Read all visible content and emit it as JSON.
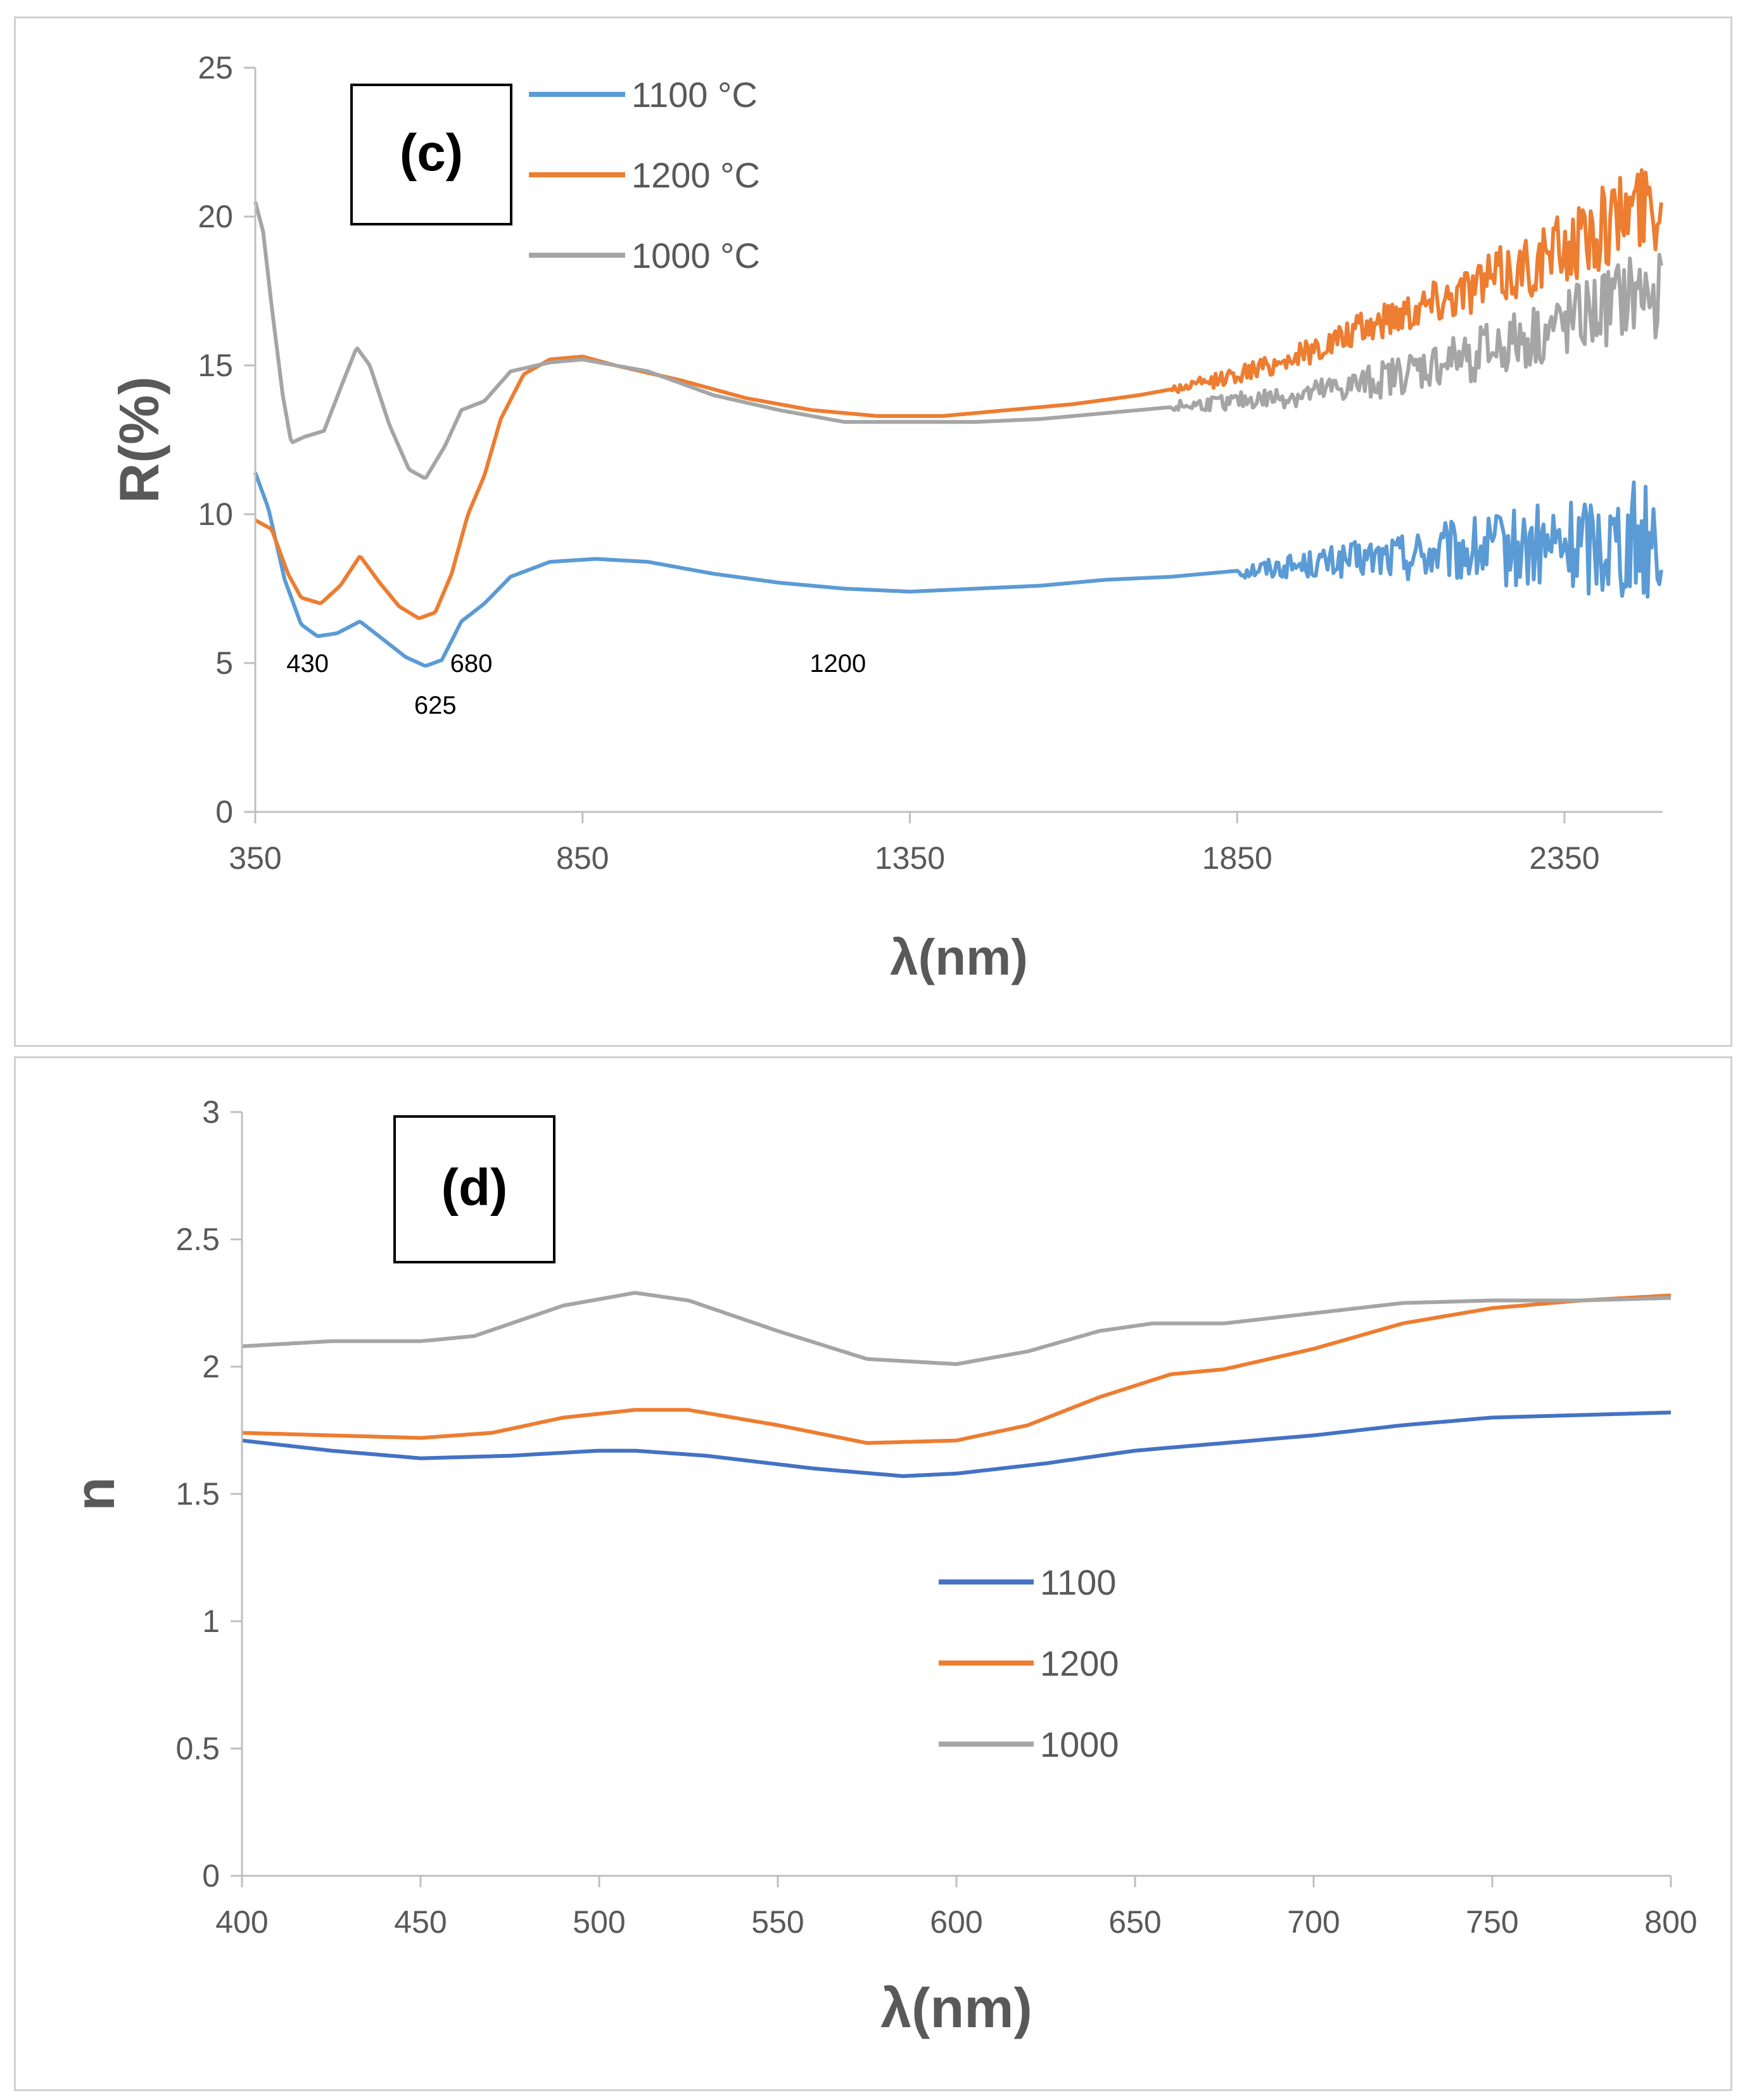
{
  "colors": {
    "s1100": "#5b9bd5",
    "s1200": "#ed7d31",
    "s1000": "#a5a5a5",
    "d1100": "#4472c4",
    "axis": "#bfbfbf",
    "text": "#595959"
  },
  "chart_data": [
    {
      "type": "line",
      "panel_label": "(c)",
      "xlabel": "λ(nm)",
      "ylabel": "R(%)",
      "xlim": [
        350,
        2500
      ],
      "ylim": [
        0,
        25
      ],
      "x_ticks": [
        "350",
        "850",
        "1350",
        "1850",
        "2350"
      ],
      "x_tick_values": [
        350,
        850,
        1350,
        1850,
        2350
      ],
      "y_ticks": [
        "0",
        "5",
        "10",
        "15",
        "20",
        "25"
      ],
      "y_tick_values": [
        0,
        5,
        10,
        15,
        20,
        25
      ],
      "legend": [
        "1100 °C",
        "1200 °C",
        "1000 °C"
      ],
      "annotations": [
        {
          "text": "430",
          "x": 430,
          "y": 4.7
        },
        {
          "text": "625",
          "x": 625,
          "y": 3.3
        },
        {
          "text": "680",
          "x": 680,
          "y": 4.7
        },
        {
          "text": "1200",
          "x": 1240,
          "y": 4.7
        }
      ],
      "series": [
        {
          "name": "1100 °C",
          "noise_from": 1850,
          "noise_amp_start": 0.3,
          "noise_amp_end": 2.2,
          "points": [
            [
              350,
              11.4
            ],
            [
              370,
              10.2
            ],
            [
              395,
              7.8
            ],
            [
              420,
              6.3
            ],
            [
              445,
              5.9
            ],
            [
              475,
              6.0
            ],
            [
              510,
              6.4
            ],
            [
              545,
              5.8
            ],
            [
              580,
              5.2
            ],
            [
              610,
              4.9
            ],
            [
              635,
              5.1
            ],
            [
              665,
              6.4
            ],
            [
              700,
              7.0
            ],
            [
              740,
              7.9
            ],
            [
              800,
              8.4
            ],
            [
              870,
              8.5
            ],
            [
              950,
              8.4
            ],
            [
              1050,
              8.0
            ],
            [
              1150,
              7.7
            ],
            [
              1250,
              7.5
            ],
            [
              1350,
              7.4
            ],
            [
              1450,
              7.5
            ],
            [
              1550,
              7.6
            ],
            [
              1650,
              7.8
            ],
            [
              1750,
              7.9
            ],
            [
              1850,
              8.1
            ],
            [
              1950,
              8.3
            ],
            [
              2050,
              8.5
            ],
            [
              2150,
              8.7
            ],
            [
              2250,
              8.8
            ],
            [
              2350,
              8.9
            ],
            [
              2450,
              9.2
            ],
            [
              2500,
              9.3
            ]
          ]
        },
        {
          "name": "1200 °C",
          "noise_from": 1750,
          "noise_amp_start": 0.2,
          "noise_amp_end": 1.6,
          "points": [
            [
              350,
              9.8
            ],
            [
              375,
              9.5
            ],
            [
              400,
              8.0
            ],
            [
              420,
              7.2
            ],
            [
              450,
              7.0
            ],
            [
              480,
              7.6
            ],
            [
              510,
              8.6
            ],
            [
              540,
              7.7
            ],
            [
              570,
              6.9
            ],
            [
              600,
              6.5
            ],
            [
              625,
              6.7
            ],
            [
              650,
              8.0
            ],
            [
              675,
              10.0
            ],
            [
              700,
              11.3
            ],
            [
              725,
              13.2
            ],
            [
              760,
              14.7
            ],
            [
              800,
              15.2
            ],
            [
              850,
              15.3
            ],
            [
              900,
              15.0
            ],
            [
              1000,
              14.5
            ],
            [
              1100,
              13.9
            ],
            [
              1200,
              13.5
            ],
            [
              1300,
              13.3
            ],
            [
              1400,
              13.3
            ],
            [
              1500,
              13.5
            ],
            [
              1600,
              13.7
            ],
            [
              1700,
              14.0
            ],
            [
              1800,
              14.4
            ],
            [
              1900,
              15.0
            ],
            [
              2000,
              15.8
            ],
            [
              2100,
              16.8
            ],
            [
              2200,
              17.6
            ],
            [
              2300,
              18.4
            ],
            [
              2400,
              19.5
            ],
            [
              2450,
              20.3
            ],
            [
              2500,
              20.5
            ]
          ]
        },
        {
          "name": "1000 °C",
          "noise_from": 1750,
          "noise_amp_start": 0.2,
          "noise_amp_end": 1.6,
          "points": [
            [
              350,
              20.5
            ],
            [
              362,
              19.5
            ],
            [
              375,
              17.0
            ],
            [
              392,
              14.0
            ],
            [
              405,
              12.4
            ],
            [
              425,
              12.6
            ],
            [
              455,
              12.8
            ],
            [
              485,
              14.5
            ],
            [
              505,
              15.6
            ],
            [
              525,
              15.0
            ],
            [
              555,
              13.0
            ],
            [
              585,
              11.5
            ],
            [
              610,
              11.2
            ],
            [
              640,
              12.3
            ],
            [
              665,
              13.5
            ],
            [
              700,
              13.8
            ],
            [
              740,
              14.8
            ],
            [
              800,
              15.1
            ],
            [
              850,
              15.2
            ],
            [
              950,
              14.8
            ],
            [
              1050,
              14.0
            ],
            [
              1150,
              13.5
            ],
            [
              1250,
              13.1
            ],
            [
              1350,
              13.1
            ],
            [
              1450,
              13.1
            ],
            [
              1550,
              13.2
            ],
            [
              1650,
              13.4
            ],
            [
              1750,
              13.6
            ],
            [
              1850,
              13.8
            ],
            [
              1950,
              14.0
            ],
            [
              2050,
              14.4
            ],
            [
              2150,
              15.0
            ],
            [
              2250,
              15.6
            ],
            [
              2350,
              16.3
            ],
            [
              2450,
              17.3
            ],
            [
              2500,
              17.5
            ]
          ]
        }
      ]
    },
    {
      "type": "line",
      "panel_label": "(d)",
      "xlabel": "λ(nm)",
      "ylabel": "n",
      "xlim": [
        400,
        800
      ],
      "ylim": [
        0,
        3
      ],
      "x_ticks": [
        "400",
        "450",
        "500",
        "550",
        "600",
        "650",
        "700",
        "750",
        "800"
      ],
      "x_tick_values": [
        400,
        450,
        500,
        550,
        600,
        650,
        700,
        750,
        800
      ],
      "y_ticks": [
        "0",
        "0.5",
        "1",
        "1.5",
        "2",
        "2.5",
        "3"
      ],
      "y_tick_values": [
        0,
        0.5,
        1,
        1.5,
        2,
        2.5,
        3
      ],
      "legend": [
        "1100",
        "1200",
        "1000"
      ],
      "series": [
        {
          "name": "1100",
          "points": [
            [
              400,
              1.71
            ],
            [
              425,
              1.67
            ],
            [
              450,
              1.64
            ],
            [
              475,
              1.65
            ],
            [
              500,
              1.67
            ],
            [
              510,
              1.67
            ],
            [
              530,
              1.65
            ],
            [
              560,
              1.6
            ],
            [
              585,
              1.57
            ],
            [
              600,
              1.58
            ],
            [
              625,
              1.62
            ],
            [
              650,
              1.67
            ],
            [
              675,
              1.7
            ],
            [
              700,
              1.73
            ],
            [
              725,
              1.77
            ],
            [
              750,
              1.8
            ],
            [
              775,
              1.81
            ],
            [
              800,
              1.82
            ]
          ]
        },
        {
          "name": "1200",
          "points": [
            [
              400,
              1.74
            ],
            [
              425,
              1.73
            ],
            [
              450,
              1.72
            ],
            [
              470,
              1.74
            ],
            [
              490,
              1.8
            ],
            [
              510,
              1.83
            ],
            [
              525,
              1.83
            ],
            [
              550,
              1.77
            ],
            [
              575,
              1.7
            ],
            [
              600,
              1.71
            ],
            [
              620,
              1.77
            ],
            [
              640,
              1.88
            ],
            [
              660,
              1.97
            ],
            [
              675,
              1.99
            ],
            [
              700,
              2.07
            ],
            [
              725,
              2.17
            ],
            [
              750,
              2.23
            ],
            [
              775,
              2.26
            ],
            [
              800,
              2.28
            ]
          ]
        },
        {
          "name": "1000",
          "points": [
            [
              400,
              2.08
            ],
            [
              425,
              2.1
            ],
            [
              450,
              2.1
            ],
            [
              465,
              2.12
            ],
            [
              490,
              2.24
            ],
            [
              510,
              2.29
            ],
            [
              525,
              2.26
            ],
            [
              550,
              2.14
            ],
            [
              575,
              2.03
            ],
            [
              600,
              2.01
            ],
            [
              620,
              2.06
            ],
            [
              640,
              2.14
            ],
            [
              655,
              2.17
            ],
            [
              675,
              2.17
            ],
            [
              700,
              2.21
            ],
            [
              725,
              2.25
            ],
            [
              750,
              2.26
            ],
            [
              775,
              2.26
            ],
            [
              800,
              2.27
            ]
          ]
        }
      ]
    }
  ]
}
